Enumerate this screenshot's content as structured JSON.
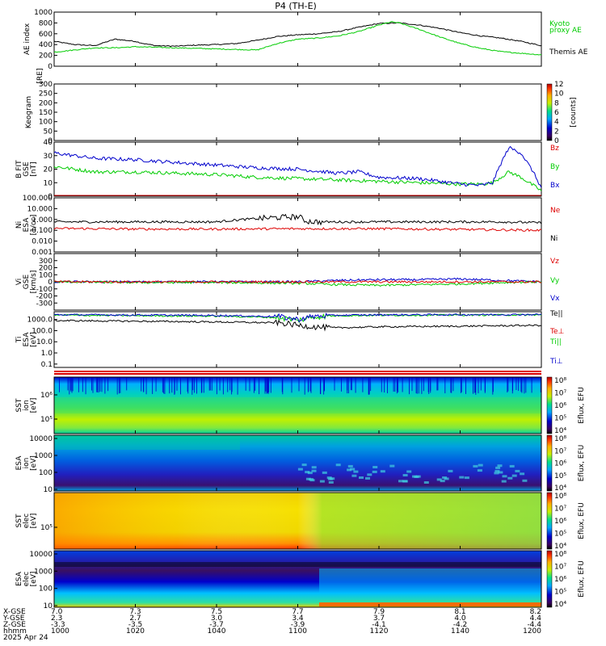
{
  "title": "P4 (TH-E)",
  "colors": {
    "green": "#00cc00",
    "red": "#dd0000",
    "blue": "#0000cc",
    "black": "#000000"
  },
  "chart_data": [
    {
      "type": "line",
      "ylabel": "AE index",
      "ylim": [
        0,
        1000
      ],
      "yticks": [
        "0",
        "200",
        "400",
        "600",
        "800",
        "1000"
      ],
      "legend": [
        "Kyoto",
        "proxy AE",
        "Themis AE"
      ],
      "series": [
        {
          "name": "Themis AE",
          "color": "#000000",
          "x": [
            0,
            5,
            10,
            15,
            20,
            22,
            25,
            30,
            35,
            40,
            45,
            50,
            55,
            60,
            65,
            70,
            75,
            80,
            85,
            90,
            95,
            100,
            105,
            110,
            115,
            120
          ],
          "values": [
            460,
            400,
            380,
            500,
            460,
            420,
            380,
            370,
            390,
            400,
            420,
            480,
            550,
            580,
            600,
            640,
            720,
            790,
            800,
            760,
            700,
            620,
            560,
            520,
            460,
            380
          ]
        },
        {
          "name": "Kyoto proxy AE",
          "color": "#00cc00",
          "x": [
            0,
            5,
            10,
            15,
            20,
            25,
            30,
            35,
            40,
            45,
            50,
            55,
            60,
            65,
            70,
            75,
            80,
            83,
            85,
            90,
            95,
            100,
            105,
            110,
            115,
            120
          ],
          "values": [
            260,
            300,
            340,
            340,
            360,
            350,
            340,
            330,
            320,
            310,
            300,
            420,
            500,
            520,
            560,
            640,
            760,
            820,
            800,
            680,
            540,
            420,
            330,
            270,
            240,
            210
          ]
        }
      ]
    },
    {
      "type": "heatmap",
      "ylabel": "Keogram",
      "ylabel2": "[RE]",
      "ylim": [
        0,
        300
      ],
      "yticks": [
        "0",
        "50",
        "100",
        "150",
        "200",
        "250",
        "300"
      ],
      "colorbar": {
        "label": "[counts]",
        "range": [
          0,
          12
        ],
        "ticks": [
          "0",
          "2",
          "4",
          "6",
          "8",
          "10",
          "12"
        ]
      }
    },
    {
      "type": "line",
      "ylabel": "B FIT",
      "ylabel2": "GSE",
      "ylabel3": "[nT]",
      "ylim": [
        0,
        40
      ],
      "yticks": [
        "0",
        "10",
        "20",
        "30",
        "40"
      ],
      "legend": [
        "Bz",
        "By",
        "Bx"
      ],
      "series": [
        {
          "name": "Bz",
          "color": "#dd0000",
          "x": [
            0,
            120
          ],
          "values": [
            0.3,
            0.3
          ]
        },
        {
          "name": "By",
          "color": "#00cc00",
          "x": [
            0,
            10,
            20,
            30,
            40,
            50,
            60,
            70,
            80,
            90,
            100,
            105,
            108,
            110,
            112,
            115,
            118,
            120
          ],
          "values": [
            22,
            18,
            18,
            17,
            16,
            14,
            13,
            12,
            11,
            10,
            9,
            9,
            10,
            14,
            18,
            14,
            8,
            4
          ]
        },
        {
          "name": "Bx",
          "color": "#0000cc",
          "x": [
            0,
            10,
            20,
            30,
            40,
            50,
            60,
            70,
            75,
            80,
            90,
            100,
            105,
            108,
            110,
            112,
            115,
            118,
            120
          ],
          "values": [
            32,
            28,
            27,
            25,
            23,
            21,
            20,
            17,
            18,
            14,
            13,
            9,
            8,
            10,
            24,
            36,
            32,
            18,
            6
          ]
        }
      ]
    },
    {
      "type": "line",
      "ylabel": "Ni",
      "ylabel2": "ESA",
      "ylabel3": "[1/cc]",
      "yscale": "log",
      "ylim": [
        0.001,
        100
      ],
      "yticks": [
        "0.001",
        "0.010",
        "0.100",
        "1.000",
        "10.000",
        "100.000"
      ],
      "legend": [
        "Ne",
        "Ni"
      ],
      "series": [
        {
          "name": "Ni",
          "color": "#000000",
          "x": [
            0,
            20,
            40,
            50,
            55,
            60,
            62,
            65,
            68,
            70,
            80,
            90,
            100,
            110,
            120
          ],
          "values": [
            0.6,
            0.6,
            0.6,
            1.2,
            1.5,
            1.8,
            0.7,
            0.6,
            0.6,
            0.6,
            0.6,
            0.6,
            0.6,
            0.6,
            0.5
          ]
        },
        {
          "name": "Ne",
          "color": "#dd0000",
          "x": [
            0,
            20,
            40,
            60,
            80,
            100,
            120
          ],
          "values": [
            0.15,
            0.13,
            0.13,
            0.14,
            0.14,
            0.12,
            0.1
          ]
        }
      ]
    },
    {
      "type": "line",
      "ylabel": "Vi",
      "ylabel2": "GSE",
      "ylabel3": "[km/s]",
      "ylim": [
        -400,
        400
      ],
      "yticks": [
        "-300",
        "-200",
        "-100",
        "0",
        "100",
        "200",
        "300"
      ],
      "legend": [
        "Vz",
        "Vy",
        "Vx"
      ],
      "series": [
        {
          "name": "Vx",
          "color": "#0000cc",
          "x": [
            0,
            20,
            40,
            60,
            70,
            80,
            90,
            100,
            110,
            120
          ],
          "values": [
            0,
            0,
            0,
            0,
            20,
            30,
            30,
            40,
            20,
            0
          ]
        },
        {
          "name": "Vy",
          "color": "#00cc00",
          "x": [
            0,
            20,
            40,
            60,
            70,
            80,
            90,
            100,
            110,
            120
          ],
          "values": [
            0,
            -10,
            -10,
            -20,
            -40,
            -50,
            -40,
            -30,
            -10,
            0
          ]
        },
        {
          "name": "Vz",
          "color": "#dd0000",
          "x": [
            0,
            20,
            40,
            60,
            80,
            100,
            120
          ],
          "values": [
            0,
            0,
            0,
            0,
            0,
            0,
            0
          ]
        }
      ]
    },
    {
      "type": "line",
      "ylabel": "Ti",
      "ylabel2": "ESA",
      "ylabel3": "[eV]",
      "yscale": "log",
      "ylim": [
        0.05,
        5000
      ],
      "yticks": [
        "0.1",
        "1.0",
        "10.0",
        "100.0",
        "1000.0"
      ],
      "legend": [
        "Te||",
        "Te⊥",
        "Ti||",
        "Ti⊥"
      ],
      "series": [
        {
          "name": "Te||",
          "color": "#000000",
          "x": [
            0,
            20,
            40,
            55,
            60,
            65,
            70,
            80,
            100,
            120
          ],
          "values": [
            800,
            700,
            600,
            500,
            300,
            200,
            180,
            220,
            250,
            300
          ]
        },
        {
          "name": "Ti||",
          "color": "#00cc00",
          "x": [
            0,
            20,
            40,
            55,
            60,
            65,
            70,
            80,
            100,
            120
          ],
          "values": [
            2500,
            2200,
            2000,
            1500,
            800,
            1800,
            2200,
            2400,
            2500,
            2600
          ]
        },
        {
          "name": "Ti⊥",
          "color": "#0000cc",
          "x": [
            0,
            20,
            40,
            55,
            60,
            65,
            70,
            80,
            100,
            120
          ],
          "values": [
            2700,
            2500,
            2300,
            1800,
            1000,
            2000,
            2400,
            2600,
            2700,
            2800
          ]
        }
      ]
    },
    {
      "type": "heatmap",
      "ylabel": "SST",
      "ylabel2": "ion",
      "ylabel3": "[eV]",
      "yticks": [
        "10⁵",
        "10⁶"
      ],
      "colorbar": {
        "label": "Eflux, EFU",
        "ticks": [
          "10⁴",
          "10⁵",
          "10⁶",
          "10⁷",
          "10⁸"
        ]
      }
    },
    {
      "type": "heatmap",
      "ylabel": "ESA",
      "ylabel2": "ion",
      "ylabel3": "[eV]",
      "yticks": [
        "10",
        "100",
        "1000",
        "10000"
      ],
      "colorbar": {
        "label": "Eflux, EFU",
        "ticks": [
          "10⁴",
          "10⁵",
          "10⁶",
          "10⁷",
          "10⁸"
        ]
      }
    },
    {
      "type": "heatmap",
      "ylabel": "SST",
      "ylabel2": "elec",
      "ylabel3": "[eV]",
      "yticks": [
        "10⁵"
      ],
      "colorbar": {
        "label": "Eflux, EFU",
        "ticks": [
          "10⁴",
          "10⁵",
          "10⁶",
          "10⁷",
          "10⁸"
        ]
      }
    },
    {
      "type": "heatmap",
      "ylabel": "ESA",
      "ylabel2": "elec",
      "ylabel3": "[eV]",
      "yticks": [
        "10",
        "100",
        "1000",
        "10000"
      ],
      "colorbar": {
        "label": "Eflux, EFU",
        "ticks": [
          "10⁴",
          "10⁵",
          "10⁶",
          "10⁷",
          "10⁸"
        ]
      }
    }
  ],
  "time_axis": {
    "row_labels": [
      "X-GSE",
      "Y-GSE",
      "Z-GSE",
      "hhmm",
      "2025 Apr 24"
    ],
    "ticks": [
      {
        "x": "7.0",
        "y": "2.3",
        "z": "-3.3",
        "t": "1000"
      },
      {
        "x": "7.3",
        "y": "2.7",
        "z": "-3.5",
        "t": "1020"
      },
      {
        "x": "7.5",
        "y": "3.0",
        "z": "-3.7",
        "t": "1040"
      },
      {
        "x": "7.7",
        "y": "3.4",
        "z": "-3.9",
        "t": "1100"
      },
      {
        "x": "7.9",
        "y": "3.7",
        "z": "-4.1",
        "t": "1120"
      },
      {
        "x": "8.1",
        "y": "4.0",
        "z": "-4.2",
        "t": "1140"
      },
      {
        "x": "8.2",
        "y": "4.4",
        "z": "-4.4",
        "t": "1200"
      }
    ]
  }
}
